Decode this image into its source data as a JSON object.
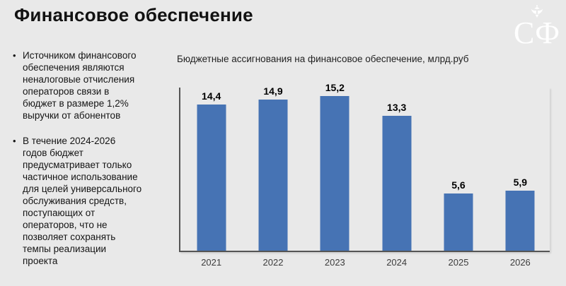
{
  "slide": {
    "title": "Финансовое обеспечение",
    "logo_text": "СФ",
    "background_color": "#e9e9e9"
  },
  "bullets": [
    "Источником финансового\nобеспечения являются\nненалоговые отчисления\nоператоров связи в\nбюджет в размере 1,2%\nвыручки от абонентов",
    "В течение 2024-2026\nгодов бюджет\nпредусматривает только\nчастичное использование\nдля целей универсального\nобслуживания средств,\nпоступающих от\nоператоров, что не\nпозволяет сохранять\nтемпы реализации\nпроекта"
  ],
  "bullet_marker": "•",
  "chart_data": {
    "type": "bar",
    "title": "Бюджетные ассигнования на финансовое обеспечение, млрд.руб",
    "categories": [
      "2021",
      "2022",
      "2023",
      "2024",
      "2025",
      "2026"
    ],
    "values": [
      14.4,
      14.9,
      15.2,
      13.3,
      5.6,
      5.9
    ],
    "value_labels": [
      "14,4",
      "14,9",
      "15,2",
      "13,3",
      "5,6",
      "5,9"
    ],
    "xlabel": "",
    "ylabel": "",
    "ylim": [
      0,
      16.2
    ],
    "grid": false,
    "legend": false,
    "bar_color": "#4673b4",
    "axis_color": "#555555",
    "value_label_color": "#000000",
    "tick_label_color": "#3c3c3c"
  }
}
